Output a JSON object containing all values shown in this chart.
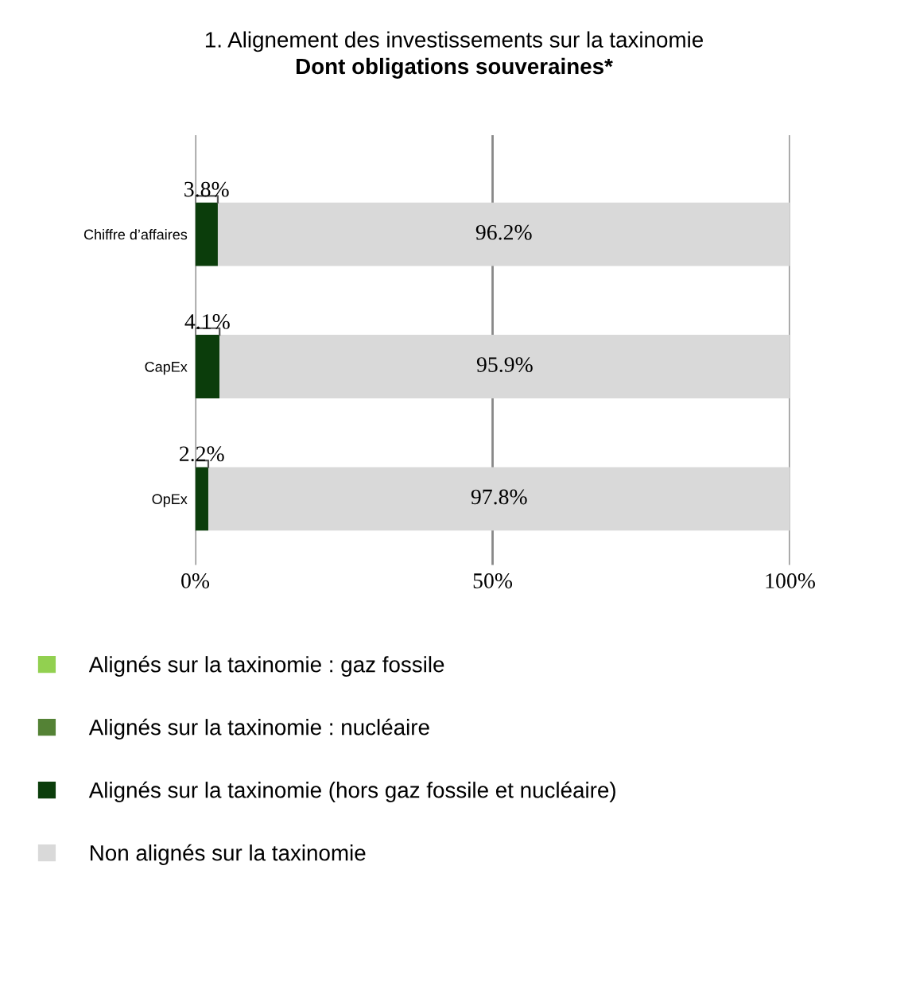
{
  "chart_data": {
    "type": "bar",
    "orientation": "horizontal",
    "stacked": true,
    "title": "1. Alignement des investissements sur la taxinomie",
    "subtitle": "Dont obligations souveraines*",
    "categories": [
      "Chiffre d’affaires",
      "CapEx",
      "OpEx"
    ],
    "series": [
      {
        "name": "Alignés sur la taxinomie : gaz fossile",
        "color": "#92d050",
        "values": [
          0,
          0,
          0
        ]
      },
      {
        "name": "Alignés sur la taxinomie : nucléaire",
        "color": "#548235",
        "values": [
          0,
          0,
          0
        ]
      },
      {
        "name": "Alignés sur la taxinomie (hors gaz fossile et nucléaire)",
        "color": "#0b3d0b",
        "values": [
          3.8,
          4.1,
          2.2
        ],
        "value_labels": [
          "3.8%",
          "4.1%",
          "2.2%"
        ]
      },
      {
        "name": "Non alignés sur la taxinomie",
        "color": "#d9d9d9",
        "values": [
          96.2,
          95.9,
          97.8
        ],
        "value_labels": [
          "96.2%",
          "95.9%",
          "97.8%"
        ]
      }
    ],
    "xlim": [
      0,
      100
    ],
    "xticks": [
      {
        "value": 0,
        "label": "0%"
      },
      {
        "value": 50,
        "label": "50%"
      },
      {
        "value": 100,
        "label": "100%"
      }
    ],
    "grid": "x",
    "legend": "bottom"
  }
}
